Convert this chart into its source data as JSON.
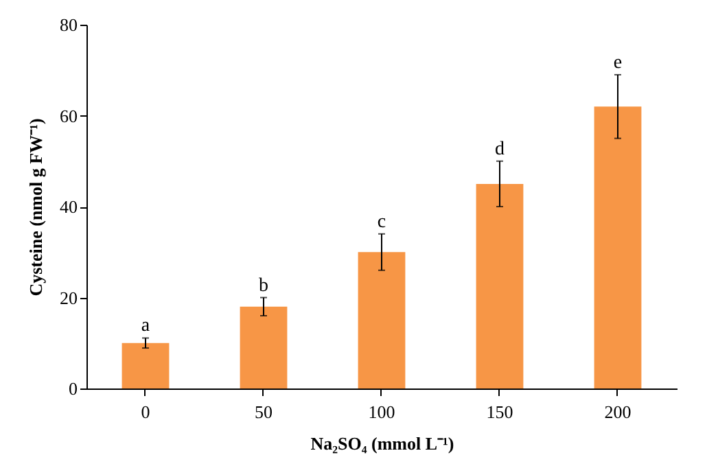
{
  "chart_data": {
    "type": "bar",
    "xlabel": "Na₂SO₄ (mmol L⁻¹)",
    "ylabel": "Cysteine (nmol g FW⁻¹)",
    "categories": [
      "0",
      "50",
      "100",
      "150",
      "200"
    ],
    "values": [
      10,
      18,
      30,
      45,
      62
    ],
    "color": "#f79646",
    "errors": [
      1.1,
      2,
      4,
      5,
      7
    ],
    "ylim": [
      0,
      80
    ],
    "yticks": [
      0,
      20,
      40,
      60,
      80
    ],
    "grid": false,
    "annotations": [
      {
        "text": "a",
        "x": "0",
        "y": 11.1
      },
      {
        "text": "b",
        "x": "50",
        "y": 20
      },
      {
        "text": "c",
        "x": "100",
        "y": 34
      },
      {
        "text": "d",
        "x": "150",
        "y": 50
      },
      {
        "text": "e",
        "x": "200",
        "y": 69
      }
    ]
  }
}
